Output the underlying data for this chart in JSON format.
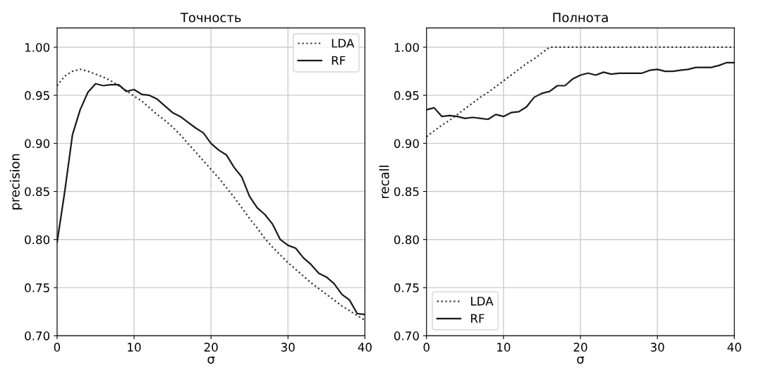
{
  "chart_data": [
    {
      "type": "line",
      "title": "Точность",
      "xlabel": "σ",
      "ylabel": "precision",
      "xlim": [
        0,
        40
      ],
      "xticks": [
        0,
        10,
        20,
        30,
        40
      ],
      "ylim": [
        0.7,
        1.02
      ],
      "yticks": [
        {
          "value": 0.7,
          "label": "0.70"
        },
        {
          "value": 0.75,
          "label": "0.75"
        },
        {
          "value": 0.8,
          "label": "0.80"
        },
        {
          "value": 0.85,
          "label": "0.85"
        },
        {
          "value": 0.9,
          "label": "0.90"
        },
        {
          "value": 0.95,
          "label": "0.95"
        },
        {
          "value": 1.0,
          "label": "1.00"
        }
      ],
      "grid": true,
      "legend": "top right",
      "x": [
        0,
        1,
        2,
        3,
        4,
        5,
        6,
        7,
        8,
        9,
        10,
        11,
        12,
        13,
        14,
        15,
        16,
        17,
        18,
        19,
        20,
        21,
        22,
        23,
        24,
        25,
        26,
        27,
        28,
        29,
        30,
        31,
        32,
        33,
        34,
        35,
        36,
        37,
        38,
        39,
        40
      ],
      "series": [
        {
          "name": "LDA",
          "color": "#333333",
          "line_style": "dotted",
          "values": [
            0.96,
            0.97,
            0.975,
            0.977,
            0.975,
            0.972,
            0.969,
            0.965,
            0.96,
            0.955,
            0.949,
            0.944,
            0.937,
            0.93,
            0.924,
            0.917,
            0.909,
            0.9,
            0.891,
            0.882,
            0.873,
            0.864,
            0.854,
            0.844,
            0.833,
            0.822,
            0.812,
            0.801,
            0.792,
            0.784,
            0.776,
            0.769,
            0.762,
            0.755,
            0.749,
            0.743,
            0.737,
            0.731,
            0.726,
            0.721,
            0.716
          ]
        },
        {
          "name": "RF",
          "color": "#1a1a1a",
          "line_style": "solid",
          "values": [
            0.797,
            0.85,
            0.909,
            0.935,
            0.953,
            0.962,
            0.96,
            0.961,
            0.961,
            0.954,
            0.956,
            0.951,
            0.95,
            0.946,
            0.939,
            0.932,
            0.928,
            0.922,
            0.916,
            0.911,
            0.9,
            0.893,
            0.888,
            0.875,
            0.865,
            0.845,
            0.833,
            0.826,
            0.816,
            0.8,
            0.794,
            0.791,
            0.781,
            0.774,
            0.765,
            0.761,
            0.754,
            0.743,
            0.737,
            0.723,
            0.722
          ]
        }
      ]
    },
    {
      "type": "line",
      "title": "Полнота",
      "xlabel": "σ",
      "ylabel": "recall",
      "xlim": [
        0,
        40
      ],
      "xticks": [
        0,
        10,
        20,
        30,
        40
      ],
      "ylim": [
        0.7,
        1.02
      ],
      "yticks": [
        {
          "value": 0.7,
          "label": "0.70"
        },
        {
          "value": 0.75,
          "label": "0.75"
        },
        {
          "value": 0.8,
          "label": "0.80"
        },
        {
          "value": 0.85,
          "label": "0.85"
        },
        {
          "value": 0.9,
          "label": "0.90"
        },
        {
          "value": 0.95,
          "label": "0.95"
        },
        {
          "value": 1.0,
          "label": "1.00"
        }
      ],
      "grid": true,
      "legend": "bottom left",
      "x": [
        0,
        1,
        2,
        3,
        4,
        5,
        6,
        7,
        8,
        9,
        10,
        11,
        12,
        13,
        14,
        15,
        16,
        17,
        18,
        19,
        20,
        21,
        22,
        23,
        24,
        25,
        26,
        27,
        28,
        29,
        30,
        31,
        32,
        33,
        34,
        35,
        36,
        37,
        38,
        39,
        40
      ],
      "series": [
        {
          "name": "LDA",
          "color": "#333333",
          "line_style": "dotted",
          "values": [
            0.907,
            0.913,
            0.919,
            0.924,
            0.93,
            0.936,
            0.942,
            0.948,
            0.953,
            0.959,
            0.965,
            0.971,
            0.977,
            0.983,
            0.988,
            0.994,
            1.0,
            1.0,
            1.0,
            1.0,
            1.0,
            1.0,
            1.0,
            1.0,
            1.0,
            1.0,
            1.0,
            1.0,
            1.0,
            1.0,
            1.0,
            1.0,
            1.0,
            1.0,
            1.0,
            1.0,
            1.0,
            1.0,
            1.0,
            1.0,
            1.0
          ]
        },
        {
          "name": "RF",
          "color": "#1a1a1a",
          "line_style": "solid",
          "values": [
            0.935,
            0.937,
            0.928,
            0.929,
            0.928,
            0.926,
            0.927,
            0.926,
            0.925,
            0.93,
            0.928,
            0.932,
            0.933,
            0.938,
            0.948,
            0.952,
            0.954,
            0.96,
            0.96,
            0.967,
            0.971,
            0.973,
            0.971,
            0.974,
            0.972,
            0.973,
            0.973,
            0.973,
            0.973,
            0.976,
            0.977,
            0.975,
            0.975,
            0.976,
            0.977,
            0.979,
            0.979,
            0.979,
            0.981,
            0.984,
            0.984
          ]
        }
      ]
    }
  ]
}
